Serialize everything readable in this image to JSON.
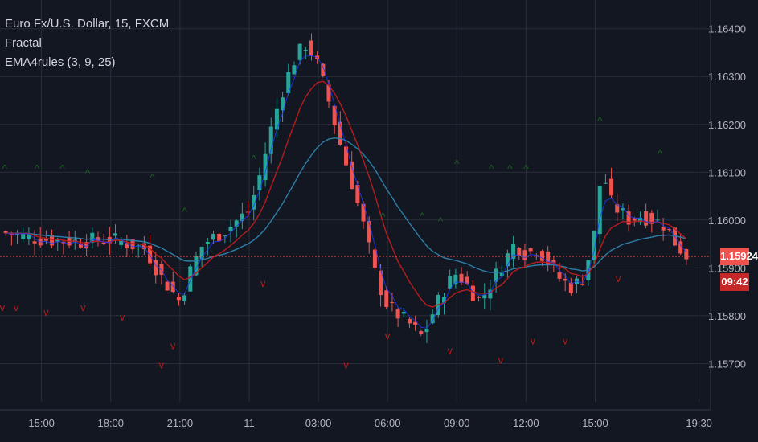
{
  "legend": {
    "symbol": "Euro Fx/U.S. Dollar, 15, FXCM",
    "indicator_1": "Fractal",
    "indicator_2": "EMA4rules (3, 9, 25)"
  },
  "price_tags": {
    "last_price": "1.15924",
    "countdown": "09:42"
  },
  "colors": {
    "background": "#131722",
    "grid": "#2a2e39",
    "candle_up": "#26a69a",
    "candle_down": "#ef5350",
    "ema_fast": "#1e3cff",
    "ema_medium": "#b71c1c",
    "ema_slow": "#2e7fa8",
    "fractal_up": "#1b5e20",
    "fractal_down": "#b71c1c",
    "last_price_line": "#ef5350",
    "countdown_bg": "#c62828"
  },
  "chart_data": {
    "type": "candlestick",
    "title": "Euro Fx/U.S. Dollar, 15, FXCM",
    "x_tick_labels": [
      "15:00",
      "18:00",
      "21:00",
      "11",
      "03:00",
      "06:00",
      "09:00",
      "12:00",
      "15:00",
      "19:30"
    ],
    "x_tick_times_hours": [
      -9,
      -6,
      -3,
      0,
      3,
      6,
      9,
      12,
      15,
      19.5
    ],
    "xlim_hours": [
      -10.8,
      20.0
    ],
    "y_tick_labels": [
      "1.15700",
      "1.15800",
      "1.15900",
      "1.16000",
      "1.16100",
      "1.16200",
      "1.16300",
      "1.16400"
    ],
    "ylim": [
      1.1562,
      1.1646
    ],
    "grid": true,
    "last_price": 1.15924,
    "trend_path": [
      [
        -10.8,
        1.15975
      ],
      [
        -9.0,
        1.1596
      ],
      [
        -7.5,
        1.15955
      ],
      [
        -6.0,
        1.1596
      ],
      [
        -4.5,
        1.1594
      ],
      [
        -3.8,
        1.1588
      ],
      [
        -3.0,
        1.1583
      ],
      [
        -2.5,
        1.159
      ],
      [
        -2.0,
        1.1595
      ],
      [
        -1.0,
        1.1598
      ],
      [
        0.0,
        1.1602
      ],
      [
        0.5,
        1.161
      ],
      [
        1.0,
        1.162
      ],
      [
        1.5,
        1.1628
      ],
      [
        2.0,
        1.1634
      ],
      [
        2.5,
        1.1637
      ],
      [
        3.0,
        1.1632
      ],
      [
        3.5,
        1.1624
      ],
      [
        4.0,
        1.1615
      ],
      [
        4.5,
        1.1607
      ],
      [
        5.0,
        1.1598
      ],
      [
        5.5,
        1.1588
      ],
      [
        6.0,
        1.1582
      ],
      [
        7.0,
        1.1578
      ],
      [
        7.5,
        1.15755
      ],
      [
        8.0,
        1.1581
      ],
      [
        8.5,
        1.1586
      ],
      [
        9.0,
        1.1589
      ],
      [
        9.5,
        1.1586
      ],
      [
        10.0,
        1.1583
      ],
      [
        10.5,
        1.1587
      ],
      [
        11.0,
        1.1591
      ],
      [
        11.5,
        1.1595
      ],
      [
        12.0,
        1.1593
      ],
      [
        12.5,
        1.1594
      ],
      [
        13.0,
        1.1591
      ],
      [
        13.5,
        1.15875
      ],
      [
        14.0,
        1.1586
      ],
      [
        14.5,
        1.1588
      ],
      [
        15.0,
        1.1598
      ],
      [
        15.3,
        1.1612
      ],
      [
        15.6,
        1.1604
      ],
      [
        16.0,
        1.1602
      ],
      [
        16.5,
        1.16
      ],
      [
        17.0,
        1.1601
      ],
      [
        17.5,
        1.16
      ],
      [
        18.0,
        1.1599
      ],
      [
        18.5,
        1.1595
      ],
      [
        19.0,
        1.15924
      ]
    ],
    "fractals_up": [
      [
        -10.6,
        1.161
      ],
      [
        -9.2,
        1.161
      ],
      [
        -8.1,
        1.161
      ],
      [
        -7.0,
        1.1609
      ],
      [
        -4.2,
        1.1608
      ],
      [
        -2.8,
        1.1601
      ],
      [
        0.2,
        1.1612
      ],
      [
        5.8,
        1.16
      ],
      [
        7.5,
        1.16
      ],
      [
        8.3,
        1.1599
      ],
      [
        9.0,
        1.1611
      ],
      [
        10.5,
        1.161
      ],
      [
        11.3,
        1.161
      ],
      [
        12.0,
        1.161
      ],
      [
        15.2,
        1.162
      ],
      [
        17.8,
        1.1613
      ]
    ],
    "fractals_down": [
      [
        -10.7,
        1.1581
      ],
      [
        -10.1,
        1.1581
      ],
      [
        -8.8,
        1.158
      ],
      [
        -7.2,
        1.1581
      ],
      [
        -5.5,
        1.1579
      ],
      [
        -3.8,
        1.1569
      ],
      [
        -3.3,
        1.1573
      ],
      [
        0.6,
        1.1586
      ],
      [
        4.2,
        1.1569
      ],
      [
        6.0,
        1.1575
      ],
      [
        8.7,
        1.1572
      ],
      [
        10.9,
        1.157
      ],
      [
        12.3,
        1.1574
      ],
      [
        13.7,
        1.1574
      ],
      [
        16.0,
        1.1587
      ]
    ]
  }
}
